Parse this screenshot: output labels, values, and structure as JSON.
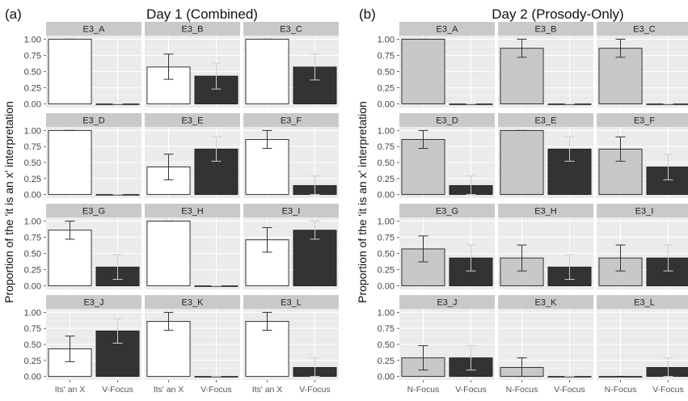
{
  "chart_data": [
    {
      "type": "bar",
      "panel_label": "(a)",
      "title": "Day 1 (Combined)",
      "ylabel": "Proportion of the 'it is an x' interpretation",
      "categories": [
        "Its' an X",
        "V-Focus"
      ],
      "ylim": [
        0,
        1
      ],
      "y_ticks": [
        "0.00",
        "0.25",
        "0.50",
        "0.75",
        "1.00"
      ],
      "bar_colors": [
        "#ffffff",
        "#333333"
      ],
      "grid": true,
      "facets": [
        {
          "name": "E3_A",
          "values": [
            1.0,
            0.0
          ],
          "err": [
            [
              1.0,
              1.0
            ],
            [
              0.0,
              0.0
            ]
          ]
        },
        {
          "name": "E3_B",
          "values": [
            0.57,
            0.43
          ],
          "err": [
            [
              0.38,
              0.77
            ],
            [
              0.23,
              0.63
            ]
          ]
        },
        {
          "name": "E3_C",
          "values": [
            1.0,
            0.57
          ],
          "err": [
            [
              1.0,
              1.0
            ],
            [
              0.37,
              0.77
            ]
          ]
        },
        {
          "name": "E3_D",
          "values": [
            1.0,
            0.0
          ],
          "err": [
            [
              1.0,
              1.0
            ],
            [
              0.0,
              0.0
            ]
          ]
        },
        {
          "name": "E3_E",
          "values": [
            0.43,
            0.71
          ],
          "err": [
            [
              0.23,
              0.63
            ],
            [
              0.52,
              0.9
            ]
          ]
        },
        {
          "name": "E3_F",
          "values": [
            0.86,
            0.14
          ],
          "err": [
            [
              0.72,
              1.0
            ],
            [
              0.0,
              0.29
            ]
          ]
        },
        {
          "name": "E3_G",
          "values": [
            0.86,
            0.29
          ],
          "err": [
            [
              0.72,
              1.0
            ],
            [
              0.1,
              0.48
            ]
          ]
        },
        {
          "name": "E3_H",
          "values": [
            1.0,
            0.0
          ],
          "err": [
            [
              1.0,
              1.0
            ],
            [
              0.0,
              0.0
            ]
          ]
        },
        {
          "name": "E3_I",
          "values": [
            0.71,
            0.86
          ],
          "err": [
            [
              0.52,
              0.9
            ],
            [
              0.72,
              1.0
            ]
          ]
        },
        {
          "name": "E3_J",
          "values": [
            0.43,
            0.71
          ],
          "err": [
            [
              0.23,
              0.63
            ],
            [
              0.52,
              0.9
            ]
          ]
        },
        {
          "name": "E3_K",
          "values": [
            0.86,
            0.0
          ],
          "err": [
            [
              0.72,
              1.0
            ],
            [
              0.0,
              0.0
            ]
          ]
        },
        {
          "name": "E3_L",
          "values": [
            0.86,
            0.14
          ],
          "err": [
            [
              0.72,
              1.0
            ],
            [
              0.0,
              0.29
            ]
          ]
        }
      ]
    },
    {
      "type": "bar",
      "panel_label": "(b)",
      "title": "Day 2 (Prosody-Only)",
      "ylabel": "Proportion of the 'it is an x' interpretation",
      "categories": [
        "N-Focus",
        "V-Focus"
      ],
      "ylim": [
        0,
        1
      ],
      "y_ticks": [
        "0.00",
        "0.25",
        "0.50",
        "0.75",
        "1.00"
      ],
      "bar_colors": [
        "#c8c8c8",
        "#333333"
      ],
      "grid": true,
      "facets": [
        {
          "name": "E3_A",
          "values": [
            1.0,
            0.0
          ],
          "err": [
            [
              1.0,
              1.0
            ],
            [
              0.0,
              0.0
            ]
          ]
        },
        {
          "name": "E3_B",
          "values": [
            0.86,
            0.0
          ],
          "err": [
            [
              0.72,
              1.0
            ],
            [
              0.0,
              0.0
            ]
          ]
        },
        {
          "name": "E3_C",
          "values": [
            0.86,
            0.0
          ],
          "err": [
            [
              0.72,
              1.0
            ],
            [
              0.0,
              0.0
            ]
          ]
        },
        {
          "name": "E3_D",
          "values": [
            0.86,
            0.14
          ],
          "err": [
            [
              0.72,
              1.0
            ],
            [
              0.0,
              0.29
            ]
          ]
        },
        {
          "name": "E3_E",
          "values": [
            1.0,
            0.71
          ],
          "err": [
            [
              1.0,
              1.0
            ],
            [
              0.52,
              0.9
            ]
          ]
        },
        {
          "name": "E3_F",
          "values": [
            0.71,
            0.43
          ],
          "err": [
            [
              0.52,
              0.9
            ],
            [
              0.23,
              0.63
            ]
          ]
        },
        {
          "name": "E3_G",
          "values": [
            0.57,
            0.43
          ],
          "err": [
            [
              0.37,
              0.77
            ],
            [
              0.23,
              0.63
            ]
          ]
        },
        {
          "name": "E3_H",
          "values": [
            0.43,
            0.29
          ],
          "err": [
            [
              0.23,
              0.63
            ],
            [
              0.1,
              0.48
            ]
          ]
        },
        {
          "name": "E3_I",
          "values": [
            0.43,
            0.43
          ],
          "err": [
            [
              0.23,
              0.63
            ],
            [
              0.23,
              0.63
            ]
          ]
        },
        {
          "name": "E3_J",
          "values": [
            0.29,
            0.29
          ],
          "err": [
            [
              0.1,
              0.48
            ],
            [
              0.1,
              0.48
            ]
          ]
        },
        {
          "name": "E3_K",
          "values": [
            0.14,
            0.0
          ],
          "err": [
            [
              0.0,
              0.29
            ],
            [
              0.0,
              0.0
            ]
          ]
        },
        {
          "name": "E3_L",
          "values": [
            0.0,
            0.14
          ],
          "err": [
            [
              0.0,
              0.0
            ],
            [
              0.0,
              0.29
            ]
          ]
        }
      ]
    }
  ]
}
